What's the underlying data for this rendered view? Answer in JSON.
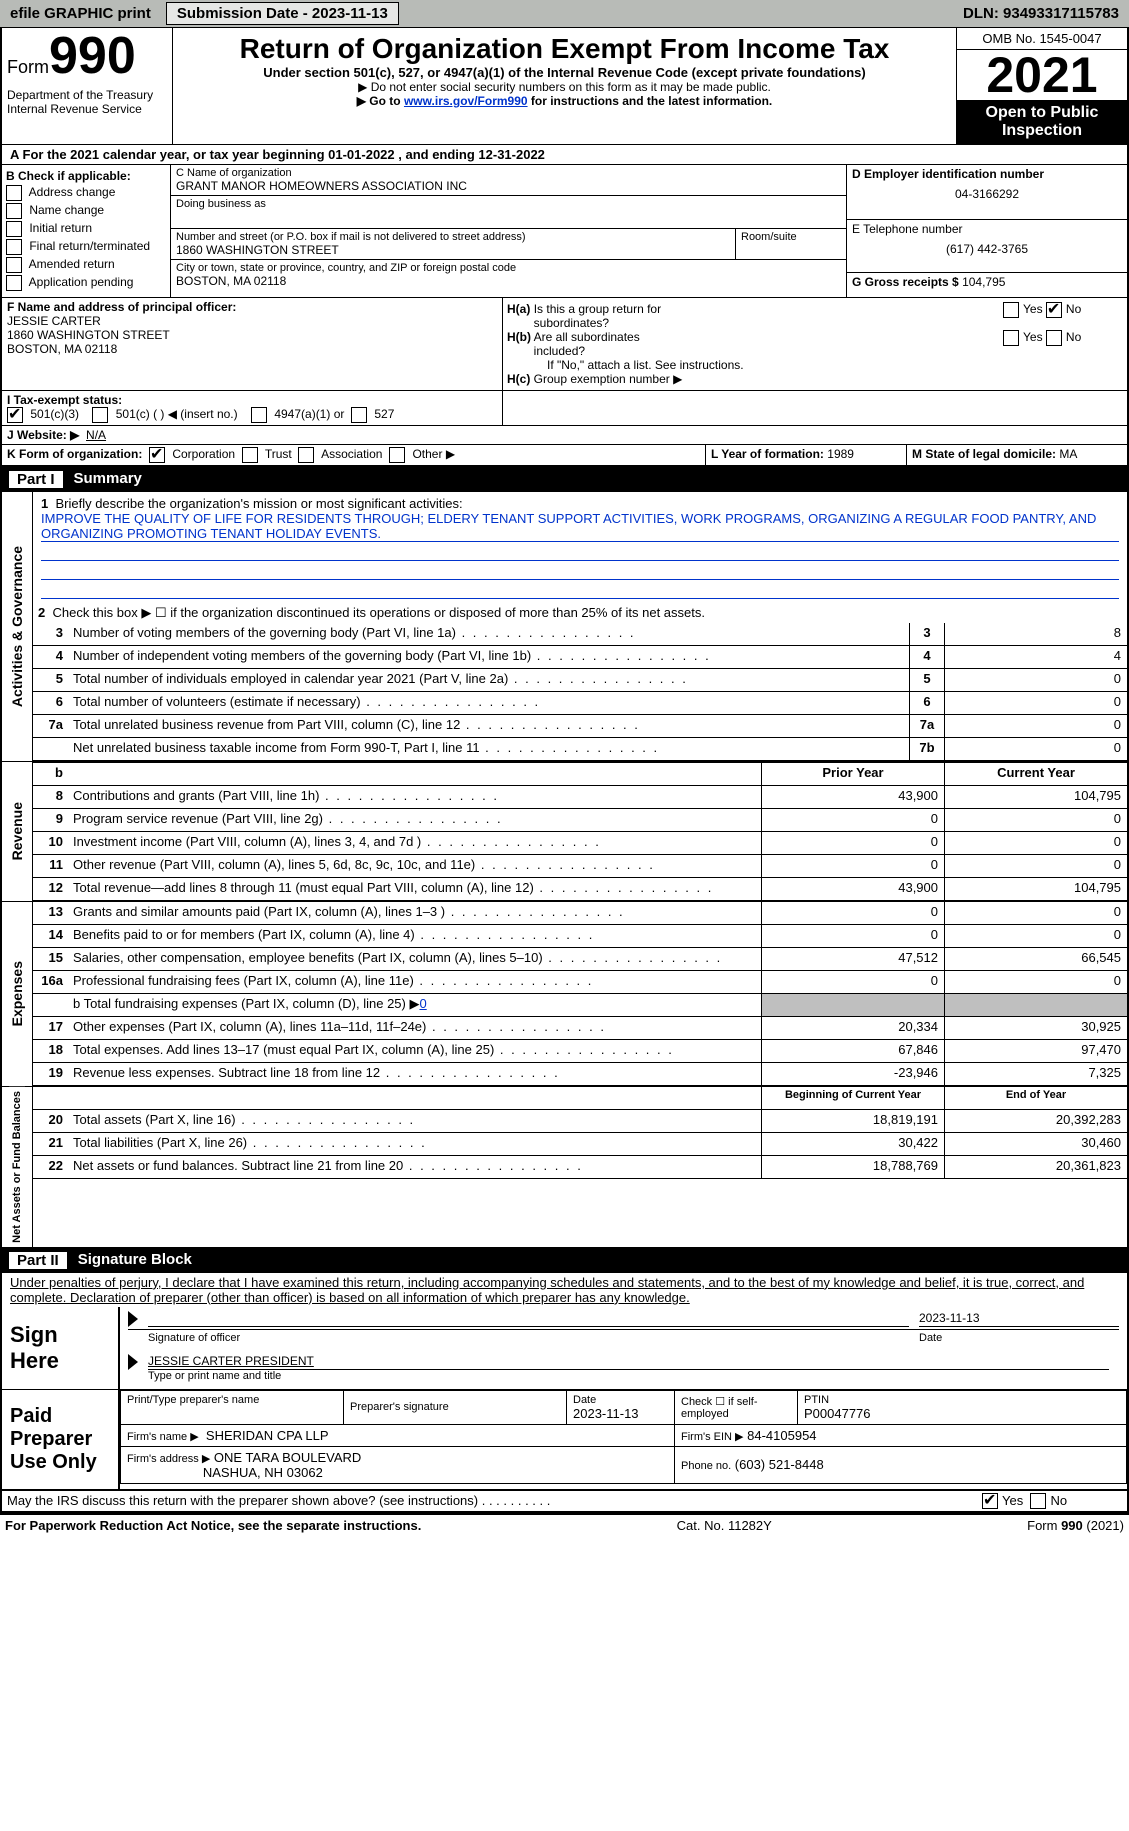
{
  "topbar": {
    "efile": "efile GRAPHIC print",
    "submission": "Submission Date - 2023-11-13",
    "dln": "DLN: 93493317115783"
  },
  "header": {
    "form_label": "Form",
    "form_number": "990",
    "dept": "Department of the Treasury",
    "irs": "Internal Revenue Service",
    "title": "Return of Organization Exempt From Income Tax",
    "subtitle": "Under section 501(c), 527, or 4947(a)(1) of the Internal Revenue Code (except private foundations)",
    "note1": "▶ Do not enter social security numbers on this form as it may be made public.",
    "note2_pre": "▶ Go to ",
    "note2_link": "www.irs.gov/Form990",
    "note2_post": " for instructions and the latest information.",
    "omb": "OMB No. 1545-0047",
    "year": "2021",
    "inspect": "Open to Public Inspection"
  },
  "section_a": {
    "line_a": "A For the 2021 calendar year, or tax year beginning 01-01-2022   , and ending 12-31-2022",
    "b_label": "B Check if applicable:",
    "b_opts": [
      "Address change",
      "Name change",
      "Initial return",
      "Final return/terminated",
      "Amended return",
      "Application pending"
    ],
    "c_label": "C Name of organization",
    "c_name": "GRANT MANOR HOMEOWNERS ASSOCIATION INC",
    "dba_label": "Doing business as",
    "addr_label": "Number and street (or P.O. box if mail is not delivered to street address)",
    "addr": "1860 WASHINGTON STREET",
    "room_label": "Room/suite",
    "city_label": "City or town, state or province, country, and ZIP or foreign postal code",
    "city": "BOSTON, MA  02118",
    "d_label": "D Employer identification number",
    "d_val": "04-3166292",
    "e_label": "E Telephone number",
    "e_val": "(617) 442-3765",
    "g_label": "G Gross receipts $",
    "g_val": "104,795",
    "f_label": "F  Name and address of principal officer:",
    "f_name": "JESSIE CARTER",
    "f_addr1": "1860 WASHINGTON STREET",
    "f_addr2": "BOSTON, MA  02118",
    "ha_label": "H(a)  Is this a group return for subordinates?",
    "hb_label": "H(b)  Are all subordinates included?",
    "hb_note": "If \"No,\" attach a list. See instructions.",
    "hc_label": "H(c)  Group exemption number ▶",
    "yes": "Yes",
    "no": "No",
    "i_label": "I   Tax-exempt status:",
    "i_501c3": "501(c)(3)",
    "i_501c": "501(c) (  ) ◀ (insert no.)",
    "i_4947": "4947(a)(1) or",
    "i_527": "527",
    "j_label": "J   Website: ▶",
    "j_val": "N/A",
    "k_label": "K Form of organization:",
    "k_corp": "Corporation",
    "k_trust": "Trust",
    "k_assoc": "Association",
    "k_other": "Other ▶",
    "l_label": "L Year of formation:",
    "l_val": "1989",
    "m_label": "M State of legal domicile:",
    "m_val": "MA"
  },
  "part1": {
    "header_num": "Part I",
    "header_title": "Summary",
    "line1_label": "Briefly describe the organization's mission or most significant activities:",
    "line1_text": "IMPROVE THE QUALITY OF LIFE FOR RESIDENTS THROUGH; ELDERY TENANT SUPPORT ACTIVITIES, WORK PROGRAMS, ORGANIZING A REGULAR FOOD PANTRY, AND ORGANIZING PROMOTING TENANT HOLIDAY EVENTS.",
    "line2": "Check this box ▶ ☐ if the organization discontinued its operations or disposed of more than 25% of its net assets.",
    "vlabel_ag": "Activities & Governance",
    "vlabel_rev": "Revenue",
    "vlabel_exp": "Expenses",
    "vlabel_na": "Net Assets or Fund Balances",
    "rows_single": [
      {
        "n": "3",
        "d": "Number of voting members of the governing body (Part VI, line 1a)",
        "b": "3",
        "v": "8"
      },
      {
        "n": "4",
        "d": "Number of independent voting members of the governing body (Part VI, line 1b)",
        "b": "4",
        "v": "4"
      },
      {
        "n": "5",
        "d": "Total number of individuals employed in calendar year 2021 (Part V, line 2a)",
        "b": "5",
        "v": "0"
      },
      {
        "n": "6",
        "d": "Total number of volunteers (estimate if necessary)",
        "b": "6",
        "v": "0"
      },
      {
        "n": "7a",
        "d": "Total unrelated business revenue from Part VIII, column (C), line 12",
        "b": "7a",
        "v": "0"
      },
      {
        "n": "",
        "d": "Net unrelated business taxable income from Form 990-T, Part I, line 11",
        "b": "7b",
        "v": "0"
      }
    ],
    "col_prior": "Prior Year",
    "col_current": "Current Year",
    "revenue_rows": [
      {
        "n": "8",
        "d": "Contributions and grants (Part VIII, line 1h)",
        "p": "43,900",
        "c": "104,795"
      },
      {
        "n": "9",
        "d": "Program service revenue (Part VIII, line 2g)",
        "p": "0",
        "c": "0"
      },
      {
        "n": "10",
        "d": "Investment income (Part VIII, column (A), lines 3, 4, and 7d )",
        "p": "0",
        "c": "0"
      },
      {
        "n": "11",
        "d": "Other revenue (Part VIII, column (A), lines 5, 6d, 8c, 9c, 10c, and 11e)",
        "p": "0",
        "c": "0"
      },
      {
        "n": "12",
        "d": "Total revenue—add lines 8 through 11 (must equal Part VIII, column (A), line 12)",
        "p": "43,900",
        "c": "104,795"
      }
    ],
    "expense_rows": [
      {
        "n": "13",
        "d": "Grants and similar amounts paid (Part IX, column (A), lines 1–3 )",
        "p": "0",
        "c": "0"
      },
      {
        "n": "14",
        "d": "Benefits paid to or for members (Part IX, column (A), line 4)",
        "p": "0",
        "c": "0"
      },
      {
        "n": "15",
        "d": "Salaries, other compensation, employee benefits (Part IX, column (A), lines 5–10)",
        "p": "47,512",
        "c": "66,545"
      },
      {
        "n": "16a",
        "d": "Professional fundraising fees (Part IX, column (A), line 11e)",
        "p": "0",
        "c": "0"
      }
    ],
    "line16b": "b  Total fundraising expenses (Part IX, column (D), line 25) ▶",
    "line16b_val": "0",
    "expense_rows2": [
      {
        "n": "17",
        "d": "Other expenses (Part IX, column (A), lines 11a–11d, 11f–24e)",
        "p": "20,334",
        "c": "30,925"
      },
      {
        "n": "18",
        "d": "Total expenses. Add lines 13–17 (must equal Part IX, column (A), line 25)",
        "p": "67,846",
        "c": "97,470"
      },
      {
        "n": "19",
        "d": "Revenue less expenses. Subtract line 18 from line 12",
        "p": "-23,946",
        "c": "7,325"
      }
    ],
    "col_begin": "Beginning of Current Year",
    "col_end": "End of Year",
    "na_rows": [
      {
        "n": "20",
        "d": "Total assets (Part X, line 16)",
        "p": "18,819,191",
        "c": "20,392,283"
      },
      {
        "n": "21",
        "d": "Total liabilities (Part X, line 26)",
        "p": "30,422",
        "c": "30,460"
      },
      {
        "n": "22",
        "d": "Net assets or fund balances. Subtract line 21 from line 20",
        "p": "18,788,769",
        "c": "20,361,823"
      }
    ]
  },
  "part2": {
    "header_num": "Part II",
    "header_title": "Signature Block",
    "jurat": "Under penalties of perjury, I declare that I have examined this return, including accompanying schedules and statements, and to the best of my knowledge and belief, it is true, correct, and complete. Declaration of preparer (other than officer) is based on all information of which preparer has any knowledge.",
    "sign_here": "Sign Here",
    "sig_officer": "Signature of officer",
    "sig_date": "2023-11-13",
    "sig_date_lbl": "Date",
    "sig_name": "JESSIE CARTER  PRESIDENT",
    "sig_name_lbl": "Type or print name and title",
    "paid_prep": "Paid Preparer Use Only",
    "prep_name_lbl": "Print/Type preparer's name",
    "prep_sig_lbl": "Preparer's signature",
    "prep_date_lbl": "Date",
    "prep_date": "2023-11-13",
    "prep_check_lbl": "Check ☐ if self-employed",
    "ptin_lbl": "PTIN",
    "ptin": "P00047776",
    "firm_name_lbl": "Firm's name    ▶",
    "firm_name": "SHERIDAN CPA LLP",
    "firm_ein_lbl": "Firm's EIN ▶",
    "firm_ein": "84-4105954",
    "firm_addr_lbl": "Firm's address ▶",
    "firm_addr1": "ONE TARA BOULEVARD",
    "firm_addr2": "NASHUA, NH  03062",
    "phone_lbl": "Phone no.",
    "phone": "(603) 521-8448",
    "discuss": "May the IRS discuss this return with the preparer shown above? (see instructions)"
  },
  "footer": {
    "left": "For Paperwork Reduction Act Notice, see the separate instructions.",
    "mid": "Cat. No. 11282Y",
    "right": "Form 990 (2021)"
  }
}
